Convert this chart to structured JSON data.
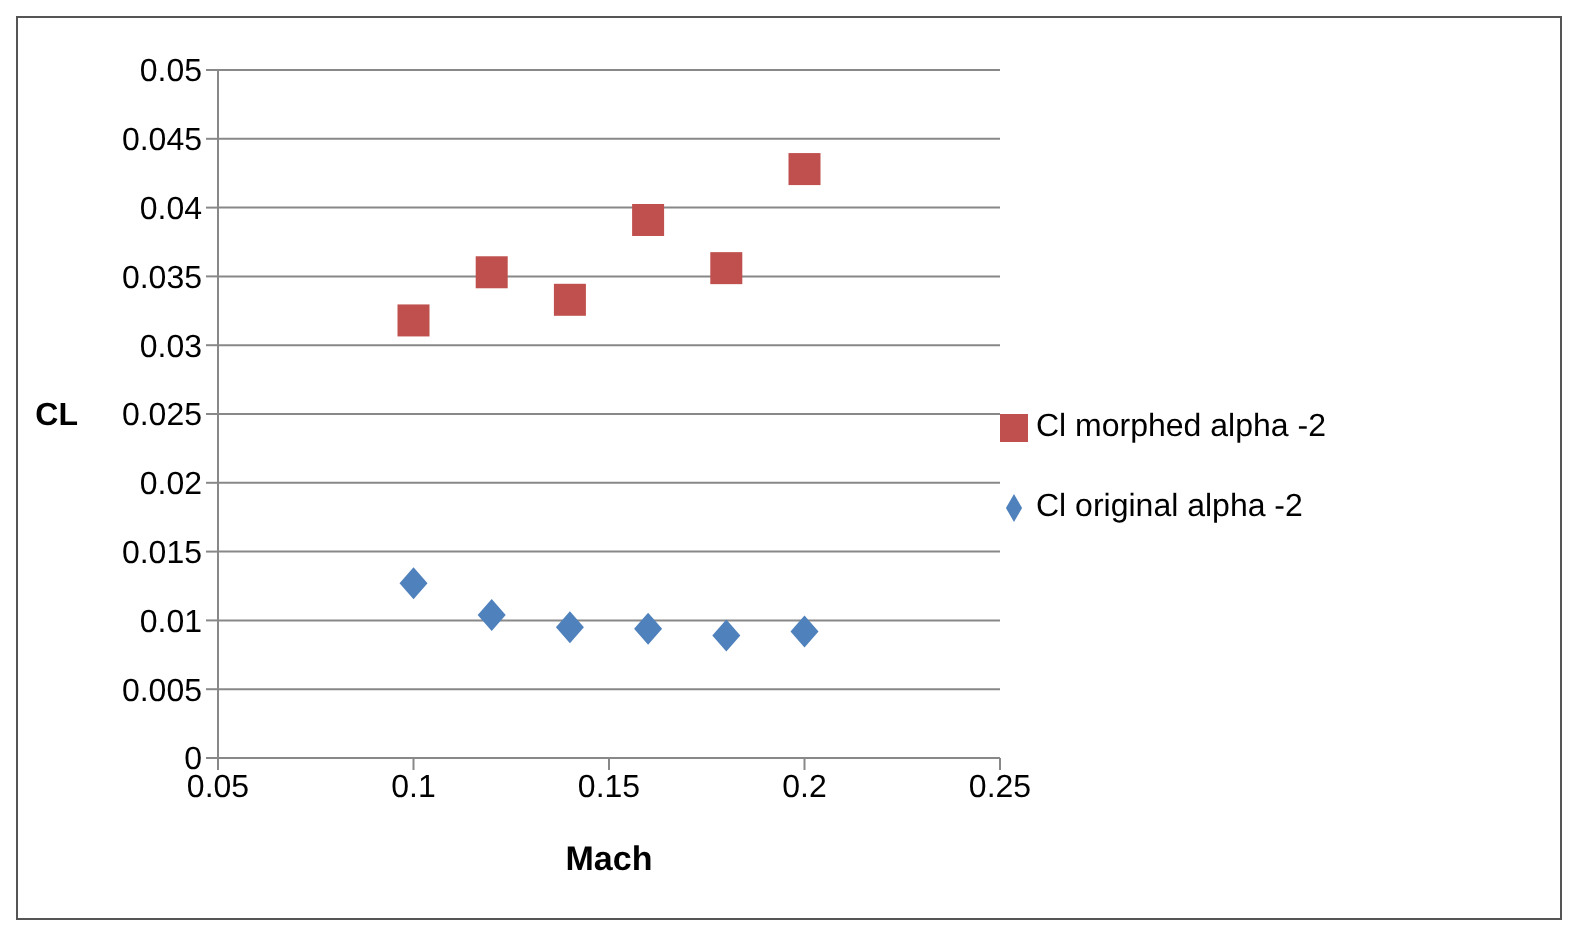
{
  "chart_data": {
    "type": "scatter",
    "xlabel": "Mach",
    "ylabel": "CL",
    "xlim": [
      0.05,
      0.25
    ],
    "xticks": [
      0.05,
      0.1,
      0.15,
      0.2,
      0.25
    ],
    "ylim": [
      0,
      0.05
    ],
    "yticks": [
      0,
      0.005,
      0.01,
      0.015,
      0.02,
      0.025,
      0.03,
      0.035,
      0.04,
      0.045,
      0.05
    ],
    "grid": "y",
    "legend": "right",
    "series": [
      {
        "name": "Cl original alpha -2",
        "color": "#4f81bd",
        "marker": "diamond",
        "x": [
          0.1,
          0.12,
          0.14,
          0.16,
          0.18,
          0.2
        ],
        "values": [
          0.0127,
          0.0104,
          0.0095,
          0.0094,
          0.0089,
          0.0092
        ]
      },
      {
        "name": "Cl morphed alpha -2",
        "color": "#c0504d",
        "marker": "square",
        "x": [
          0.1,
          0.12,
          0.14,
          0.16,
          0.18,
          0.2
        ],
        "values": [
          0.0318,
          0.0353,
          0.0333,
          0.0391,
          0.0356,
          0.0428
        ]
      }
    ]
  }
}
